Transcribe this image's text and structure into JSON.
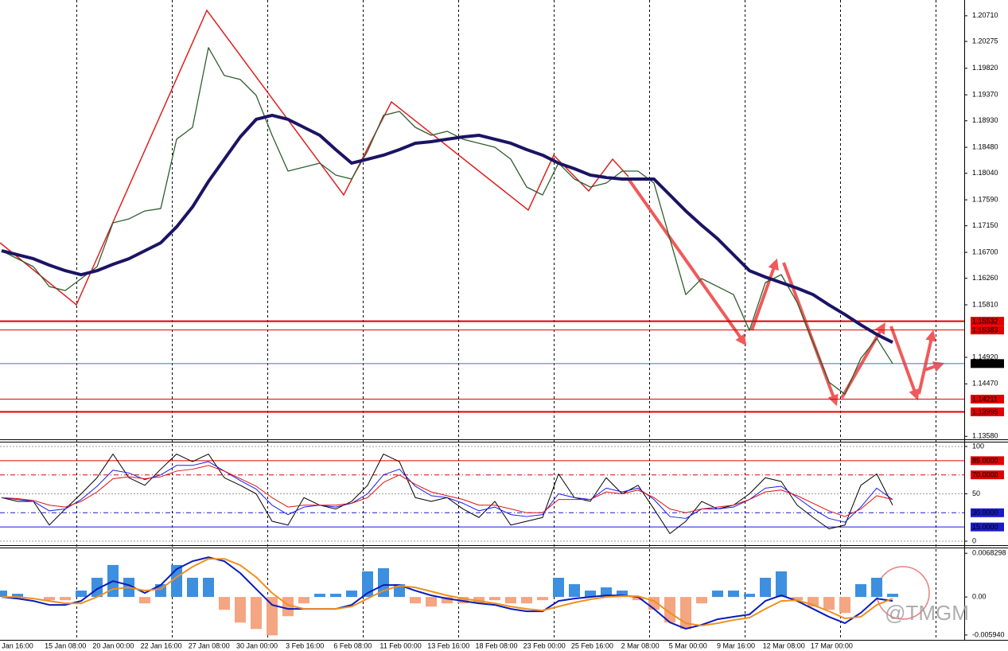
{
  "chart_data": [
    {
      "type": "line",
      "ylim": [
        1.1353,
        1.2091
      ],
      "yticks": [
        {
          "value": 1.2071,
          "label": "1.20710"
        },
        1.20275,
        {
          "value": 1.1982,
          "label": "1.19820"
        },
        {
          "value": 1.1937,
          "label": "1.19370"
        },
        {
          "value": 1.1893,
          "label": "1.18930"
        },
        {
          "value": 1.1848,
          "label": "1.18480"
        },
        {
          "value": 1.1804,
          "label": "1.18040"
        },
        {
          "value": 1.1759,
          "label": "1.17590"
        },
        {
          "value": 1.1715,
          "label": "1.17150"
        },
        {
          "value": 1.167,
          "label": "1.16700"
        },
        {
          "value": 1.1626,
          "label": "1.16260"
        },
        {
          "value": 1.1581,
          "label": "1.15810"
        },
        {
          "value": 1.1492,
          "label": "1.14920"
        },
        {
          "value": 1.1447,
          "label": "1.14470"
        },
        {
          "value": 1.1358,
          "label": "1.13580"
        }
      ],
      "grid": false,
      "hlines": [
        {
          "value": 1.15532,
          "color": "#e00000",
          "width": 2,
          "style": "solid"
        },
        {
          "value": 1.15383,
          "color": "#e00000",
          "width": 1,
          "style": "solid"
        },
        {
          "value": 1.14814,
          "color": "#3a6fd8",
          "width": 1,
          "style": "solid",
          "box": "#000000"
        },
        {
          "value": 1.14211,
          "color": "#e00000",
          "width": 1,
          "style": "solid"
        },
        {
          "value": 1.13995,
          "color": "#e00000",
          "width": 2,
          "style": "solid"
        }
      ],
      "series": [
        {
          "color": "#2f5f2f",
          "width": 1.3,
          "values": [
            1.16726,
            1.16591,
            1.16456,
            1.16119,
            1.16051,
            1.16254,
            1.16456,
            1.17199,
            1.17266,
            1.17401,
            1.17442,
            1.18617,
            1.18819,
            1.2017,
            1.19697,
            1.1963,
            1.1936,
            1.18684,
            1.18077,
            1.18144,
            1.18212,
            1.18009,
            1.17942,
            1.18414,
            1.19022,
            1.19089,
            1.18819,
            1.18684,
            1.18752,
            1.18617,
            1.18549,
            1.18482,
            1.18279,
            1.17807,
            1.17672,
            1.18212,
            1.17942,
            1.17807,
            1.17874,
            1.18077,
            1.18077,
            1.17874,
            1.16929,
            1.15983,
            1.16254,
            1.16119,
            1.15983,
            1.15376,
            1.16186,
            1.16321,
            1.15848,
            1.15173,
            1.14498,
            1.14295,
            1.14903,
            1.15241,
            1.14814
          ]
        },
        {
          "color": "#1b1464",
          "width": 4,
          "values": [
            1.16726,
            1.16659,
            1.16591,
            1.16483,
            1.16389,
            1.16321,
            1.16389,
            1.16497,
            1.16591,
            1.16726,
            1.16861,
            1.17131,
            1.17469,
            1.17901,
            1.18279,
            1.18657,
            1.18954,
            1.19022,
            1.18954,
            1.18819,
            1.18684,
            1.18441,
            1.18212,
            1.18279,
            1.18347,
            1.18441,
            1.18549,
            1.18576,
            1.18617,
            1.18657,
            1.18684,
            1.18617,
            1.18549,
            1.18441,
            1.18347,
            1.18212,
            1.18117,
            1.18009,
            1.17969,
            1.17942,
            1.17942,
            1.17942,
            1.17672,
            1.17401,
            1.17158,
            1.16929,
            1.16659,
            1.16389,
            1.16281,
            1.16186,
            1.16092,
            1.15983,
            1.15808,
            1.15646,
            1.1547,
            1.15308,
            1.15173
          ]
        }
      ]
    },
    {
      "type": "line",
      "ylim": [
        0,
        100
      ],
      "yticks": [
        0,
        50,
        100
      ],
      "grid": true,
      "hlines": [
        {
          "value": 85,
          "label": "85.0000",
          "color": "#e00000",
          "width": 1,
          "style": "solid"
        },
        {
          "value": 70,
          "label": "70.0000",
          "color": "#e00000",
          "width": 1,
          "style": "dashdot"
        },
        {
          "value": 30,
          "label": "30.0000",
          "color": "#1a1acc",
          "width": 1,
          "style": "dashdot"
        },
        {
          "value": 15,
          "label": "15.0000",
          "color": "#1a1acc",
          "width": 1,
          "style": "solid"
        }
      ],
      "series": [
        {
          "color": "#000000",
          "width": 1,
          "values": [
            46,
            42,
            42,
            17,
            34,
            50,
            67,
            92,
            67,
            59,
            76,
            92,
            84,
            92,
            67,
            59,
            50,
            21,
            17,
            46,
            38,
            34,
            42,
            59,
            92,
            84,
            46,
            42,
            46,
            34,
            25,
            42,
            17,
            21,
            25,
            71,
            46,
            42,
            67,
            50,
            59,
            34,
            8,
            21,
            42,
            34,
            38,
            50,
            67,
            63,
            38,
            25,
            13,
            17,
            59,
            71,
            38
          ]
        },
        {
          "color": "#1a1aee",
          "width": 1,
          "values": [
            46,
            44,
            42,
            32,
            34,
            44,
            58,
            75,
            72,
            65,
            70,
            80,
            80,
            84,
            74,
            64,
            55,
            38,
            28,
            36,
            38,
            36,
            40,
            50,
            70,
            76,
            58,
            48,
            46,
            40,
            32,
            36,
            28,
            26,
            28,
            50,
            46,
            44,
            56,
            52,
            56,
            44,
            26,
            24,
            34,
            34,
            36,
            44,
            56,
            58,
            46,
            34,
            24,
            20,
            36,
            56,
            44
          ]
        },
        {
          "color": "#e01010",
          "width": 1,
          "values": [
            46,
            45,
            43,
            38,
            36,
            42,
            52,
            66,
            68,
            66,
            68,
            74,
            76,
            80,
            74,
            66,
            58,
            46,
            36,
            38,
            38,
            38,
            40,
            46,
            62,
            70,
            60,
            52,
            48,
            44,
            38,
            38,
            34,
            30,
            30,
            44,
            44,
            44,
            52,
            50,
            54,
            46,
            34,
            30,
            34,
            36,
            38,
            44,
            52,
            54,
            48,
            40,
            32,
            26,
            34,
            48,
            44
          ]
        }
      ]
    },
    {
      "type": "bar",
      "ylim": [
        -0.0067,
        0.0076
      ],
      "yticks": [
        {
          "value": -0.00594,
          "label": "-0.005940"
        },
        {
          "value": 0,
          "label": "0.00"
        },
        0.0068298
      ],
      "grid": false,
      "watermark": "@TMGM",
      "x_labels": [
        "Jan 16:00",
        "15 Jan 08:00",
        "20 Jan 00:00",
        "22 Jan 16:00",
        "27 Jan 08:00",
        "30 Jan 00:00",
        "3 Feb 16:00",
        "6 Feb 08:00",
        "11 Feb 00:00",
        "13 Feb 16:00",
        "18 Feb 08:00",
        "23 Feb 00:00",
        "25 Feb 16:00",
        "2 Mar 08:00",
        "5 Mar 00:00",
        "9 Mar 16:00",
        "12 Mar 08:00",
        "17 Mar 00:00"
      ],
      "series": [
        {
          "type": "bar",
          "color": "#3d8fe0",
          "negative_color": "#f4a582",
          "values": [
            0.001,
            0.0005,
            0,
            -0.0005,
            -0.0005,
            0.001,
            0.003,
            0.005,
            0.003,
            -0.001,
            0.002,
            0.005,
            0.003,
            0.003,
            -0.002,
            -0.004,
            -0.005,
            -0.006,
            -0.003,
            -0.001,
            0.0005,
            0.0005,
            0.001,
            0.004,
            0.0045,
            0.002,
            -0.001,
            -0.0015,
            -0.001,
            -0.001,
            -0.001,
            -0.0005,
            -0.001,
            -0.001,
            -0.0005,
            0.003,
            0.002,
            0.001,
            0.0015,
            0.001,
            -0.0005,
            -0.002,
            -0.004,
            -0.005,
            -0.001,
            0.001,
            0.001,
            0.0005,
            0.003,
            0.004,
            -0.0005,
            -0.0015,
            -0.002,
            -0.0025,
            0.002,
            0.003,
            0.0005
          ]
        },
        {
          "type": "line",
          "color": "#0b1cb8",
          "width": 2,
          "values": [
            0,
            -0.00025,
            -0.00062,
            -0.00124,
            -0.00124,
            -0.00062,
            0.00124,
            0.00248,
            0.00186,
            0.00062,
            0.00186,
            0.00435,
            0.00559,
            0.00621,
            0.00559,
            0.00373,
            0.00124,
            -0.00124,
            -0.00186,
            -0.00186,
            -0.00186,
            -0.00186,
            -0.00124,
            0.00062,
            0.00186,
            0.00186,
            0.00099,
            0.00025,
            -0.00025,
            -0.00062,
            -0.00099,
            -0.00124,
            -0.00186,
            -0.00224,
            -0.00224,
            -0.00062,
            -0.00025,
            0,
            0.00025,
            0.00025,
            0,
            -0.00186,
            -0.00397,
            -0.00497,
            -0.00435,
            -0.00348,
            -0.0031,
            -0.00273,
            -0.00062,
            0.00025,
            -0.00062,
            -0.00186,
            -0.0031,
            -0.0041,
            -0.00248,
            -0.00025,
            -0.00062
          ]
        },
        {
          "type": "line",
          "color": "#f0901e",
          "width": 2,
          "values": [
            0,
            0,
            -0.00025,
            -0.00062,
            -0.00099,
            -0.00099,
            0,
            0.00124,
            0.00149,
            0.00099,
            0.00124,
            0.0031,
            0.00472,
            0.00596,
            0.00596,
            0.00497,
            0.0031,
            0.00062,
            -0.00124,
            -0.00186,
            -0.00186,
            -0.00186,
            -0.00149,
            -0.00025,
            0.00099,
            0.00174,
            0.00149,
            0.00087,
            0.00025,
            -0.00025,
            -0.00062,
            -0.00099,
            -0.00149,
            -0.00186,
            -0.00211,
            -0.00149,
            -0.00087,
            -0.00037,
            0,
            0.00012,
            0.00012,
            -0.00062,
            -0.00248,
            -0.0041,
            -0.00447,
            -0.0041,
            -0.0036,
            -0.00323,
            -0.00186,
            -0.00062,
            -0.0005,
            -0.00124,
            -0.00224,
            -0.00335,
            -0.0031,
            -0.00124,
            -0.00025
          ]
        }
      ]
    }
  ]
}
